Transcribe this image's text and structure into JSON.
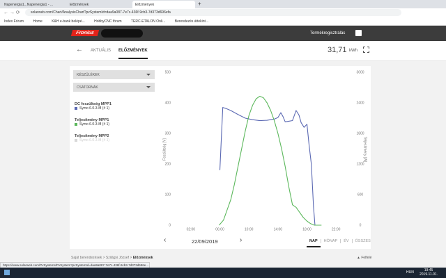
{
  "browser": {
    "tabs": [
      "Napenergia1...Napenergia1 - ...",
      "Előzmények",
      "Előzmények"
    ],
    "url": "solarweb.com/Chart/AnalysisChart?pvSystemId=daa9a087-7e7c-436f-9cb3-7d373d696efa",
    "bookmarks": [
      "Index Fórum",
      "Home",
      "K&H e-bank belépé...",
      "HobbyCNC fórum",
      "TERC-ETALON Onli...",
      "Berendezés áttekint..."
    ],
    "status_url": "https://www.solarweb.com/PvSystems/PvSystem?pvSystemId=daa9a087-7e7c-436f-9cb3-7d373d696e..."
  },
  "header": {
    "brand": "Fronius",
    "register": "Termékregisztrálás"
  },
  "nav": {
    "tabs": [
      "AKTUÁLIS",
      "ELŐZMÉNYEK"
    ],
    "energy": "31,71",
    "unit": "kWh"
  },
  "panel": {
    "dropdowns": [
      "KÉSZÜLÉKEK",
      "CSATORNÁK"
    ]
  },
  "chart_data": {
    "type": "line",
    "ylabel": "Feszültség [V]",
    "y2label": "Teljesítmény [W]",
    "xlim": [
      0,
      24
    ],
    "xticks": [
      {
        "value": 2,
        "label": "02:00"
      },
      {
        "value": 6,
        "label": "06:00"
      },
      {
        "value": 10,
        "label": "10:00"
      },
      {
        "value": 14,
        "label": "14:00"
      },
      {
        "value": 18,
        "label": "18:00"
      },
      {
        "value": 22,
        "label": "22:00"
      }
    ],
    "ylim": [
      0,
      500
    ],
    "yticks": [
      0,
      100,
      200,
      300,
      400,
      500
    ],
    "y2lim": [
      0,
      3000
    ],
    "y2ticks": [
      0,
      600,
      1200,
      1800,
      2400,
      3000
    ],
    "grid": false,
    "series": [
      {
        "name": "DC feszültség MPP1",
        "device": "Symo 6.0-3-M (# 1)",
        "color": "#5b69b3",
        "x": [
          6.0,
          6.4,
          6.8,
          7.5,
          8.5,
          9.5,
          10.5,
          11.5,
          12.5,
          13.5,
          14.0,
          14.4,
          14.7,
          15.0,
          15.5,
          16.0,
          16.5,
          16.9,
          17.2,
          17.6,
          18.0,
          18.3,
          18.6,
          18.9,
          19.1
        ],
        "values": [
          180,
          385,
          382,
          375,
          362,
          350,
          345,
          342,
          343,
          347,
          352,
          368,
          355,
          338,
          340,
          342,
          375,
          360,
          335,
          320,
          330,
          260,
          200,
          60,
          0
        ]
      },
      {
        "name": "Teljesítmény MPP1",
        "device": "Symo 6.0-3-M (# 1)",
        "color": "#5cb85c",
        "axis": "y2",
        "x": [
          5.9,
          6.5,
          7.0,
          7.5,
          8.0,
          8.5,
          9.0,
          9.5,
          10.0,
          10.5,
          11.0,
          11.5,
          12.0,
          12.5,
          13.0,
          13.5,
          14.0,
          14.5,
          15.0,
          15.5,
          16.0,
          16.5,
          17.0,
          17.5,
          18.0,
          18.5,
          19.0,
          20.0
        ],
        "values": [
          0,
          100,
          300,
          500,
          800,
          1150,
          1500,
          1850,
          2150,
          2350,
          2480,
          2530,
          2500,
          2400,
          2250,
          2050,
          1800,
          1500,
          1150,
          750,
          400,
          350,
          250,
          150,
          80,
          30,
          0,
          0
        ]
      },
      {
        "name": "Teljesítmény MPP2",
        "device": "Symo 6.0-3-M (# 1)",
        "color": "#d8d8d8"
      }
    ]
  },
  "date_nav": {
    "date": "22/09/2019",
    "periods": [
      "NAP",
      "HÓNAP",
      "ÉV",
      "ÖSSZES"
    ]
  },
  "breadcrumb": [
    "Saját berendezések",
    "Szilágyi József",
    "Előzmények"
  ],
  "up": "Felfelé",
  "taskbar": {
    "language": "HUN",
    "time": "19:45",
    "date": "2019.11.01."
  }
}
